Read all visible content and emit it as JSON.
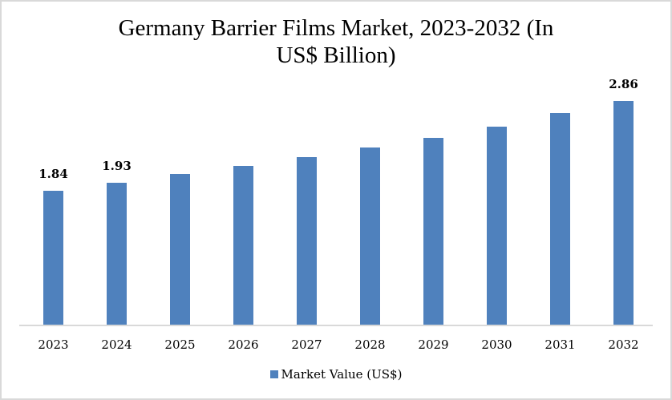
{
  "chart_data": {
    "type": "bar",
    "title": "Germany Barrier Films Market, 2023-2032 (In US$ Billion)",
    "title_lines": [
      "Germany Barrier Films Market, 2023-2032 (In",
      "US$ Billion)"
    ],
    "categories": [
      "2023",
      "2024",
      "2025",
      "2026",
      "2027",
      "2028",
      "2029",
      "2030",
      "2031",
      "2032"
    ],
    "series": [
      {
        "name": "Market Value (US$)",
        "color": "#4f81bd",
        "values": [
          1.84,
          1.93,
          2.03,
          2.12,
          2.22,
          2.33,
          2.44,
          2.57,
          2.72,
          2.86
        ]
      }
    ],
    "data_labels": [
      {
        "index": 0,
        "text": "1.84"
      },
      {
        "index": 1,
        "text": "1.93"
      },
      {
        "index": 9,
        "text": "2.86"
      }
    ],
    "xlabel": "",
    "ylabel": "",
    "y_axis_visible": false,
    "grid": false,
    "legend_position": "bottom"
  }
}
